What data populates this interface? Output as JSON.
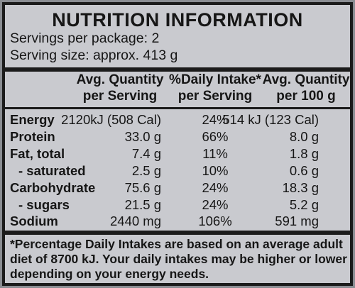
{
  "title": "NUTRITION INFORMATION",
  "servings_per_package": "Servings per package: 2",
  "serving_size": "Serving size: approx. 413 g",
  "headers": {
    "col1_line1": "Avg. Quantity",
    "col1_line2": "per Serving",
    "col2_line1": "%Daily Intake*",
    "col2_line2": "per Serving",
    "col3_line1": "Avg. Quantity",
    "col3_line2": "per 100 g"
  },
  "rows": [
    {
      "label": "Energy",
      "per_serving": "2120kJ (508 Cal)",
      "daily_intake": "24%",
      "per_100g": "514 kJ (123 Cal)"
    },
    {
      "label": "Protein",
      "per_serving": "33.0 g",
      "daily_intake": "66%",
      "per_100g": "8.0 g"
    },
    {
      "label": "Fat, total",
      "per_serving": "7.4 g",
      "daily_intake": "11%",
      "per_100g": "1.8 g"
    },
    {
      "label": "- saturated",
      "per_serving": "2.5 g",
      "daily_intake": "10%",
      "per_100g": "0.6 g"
    },
    {
      "label": "Carbohydrate",
      "per_serving": "75.6 g",
      "daily_intake": "24%",
      "per_100g": "18.3 g"
    },
    {
      "label": "- sugars",
      "per_serving": "21.5 g",
      "daily_intake": "24%",
      "per_100g": "5.2 g"
    },
    {
      "label": "Sodium",
      "per_serving": "2440 mg",
      "daily_intake": "106%",
      "per_100g": "591 mg"
    }
  ],
  "footnote": [
    "*Percentage Daily Intakes are based on an average adult",
    "diet of 8700 kJ. Your daily intakes may be higher or lower",
    "depending on your energy needs."
  ]
}
